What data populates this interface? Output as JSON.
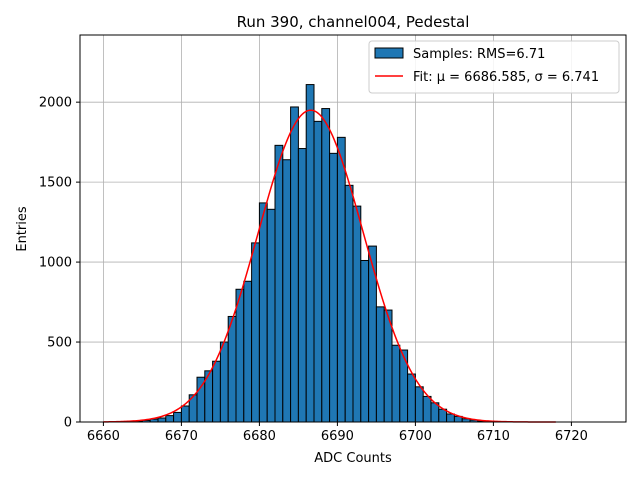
{
  "chart_data": {
    "type": "bar",
    "title": "Run 390, channel004, Pedestal",
    "xlabel": "ADC Counts",
    "ylabel": "Entries",
    "xlim": [
      6657,
      6727
    ],
    "ylim": [
      0,
      2420
    ],
    "xticks": [
      6660,
      6670,
      6680,
      6690,
      6700,
      6710,
      6720
    ],
    "yticks": [
      0,
      500,
      1000,
      1500,
      2000
    ],
    "grid": true,
    "legend_position": "top-right",
    "bin_width": 1,
    "bins": {
      "name": "Samples: RMS=6.71",
      "color": "#1f77b4",
      "edgecolor": "#000000",
      "left_edges": [
        6662,
        6663,
        6664,
        6665,
        6666,
        6667,
        6668,
        6669,
        6670,
        6671,
        6672,
        6673,
        6674,
        6675,
        6676,
        6677,
        6678,
        6679,
        6680,
        6681,
        6682,
        6683,
        6684,
        6685,
        6686,
        6687,
        6688,
        6689,
        6690,
        6691,
        6692,
        6693,
        6694,
        6695,
        6696,
        6697,
        6698,
        6699,
        6700,
        6701,
        6702,
        6703,
        6704,
        6705,
        6706,
        6707,
        6708,
        6709,
        6710,
        6711
      ],
      "values": [
        2,
        3,
        5,
        10,
        18,
        25,
        40,
        60,
        100,
        170,
        280,
        320,
        380,
        500,
        660,
        830,
        880,
        1120,
        1370,
        1330,
        1730,
        1640,
        1970,
        1710,
        2110,
        1880,
        1960,
        1680,
        1780,
        1480,
        1350,
        1010,
        1100,
        720,
        700,
        480,
        450,
        300,
        220,
        160,
        120,
        80,
        50,
        35,
        20,
        12,
        6,
        3,
        2,
        1
      ]
    },
    "fit": {
      "name": "Fit: μ = 6686.585, σ = 6.741",
      "color": "#ff0000",
      "mu": 6686.585,
      "sigma": 6.741,
      "amplitude": 1950,
      "x_range": [
        6660,
        6718
      ]
    }
  }
}
